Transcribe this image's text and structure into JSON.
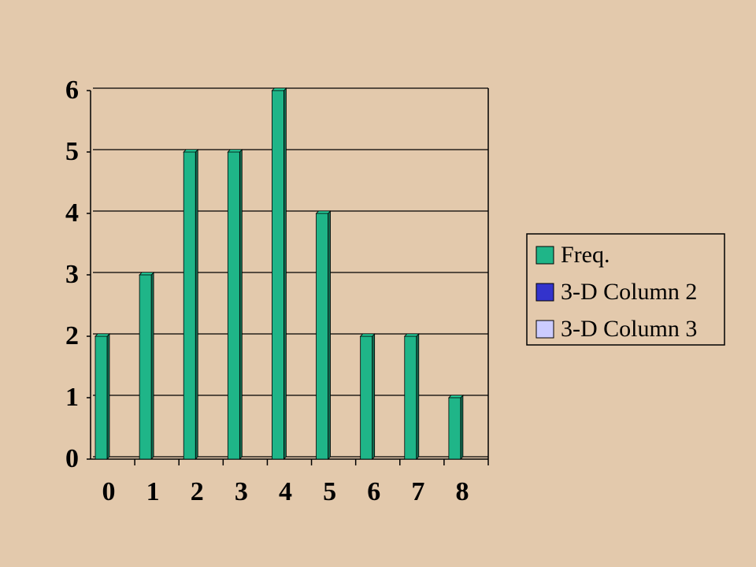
{
  "chart_data": {
    "type": "bar",
    "categories": [
      "0",
      "1",
      "2",
      "3",
      "4",
      "5",
      "6",
      "7",
      "8"
    ],
    "series": [
      {
        "name": "Freq.",
        "color": "#1fb588",
        "values": [
          2,
          3,
          5,
          5,
          6,
          4,
          2,
          2,
          1
        ]
      },
      {
        "name": "3-D Column 2",
        "color": "#3333cc",
        "values": [
          null,
          null,
          null,
          null,
          null,
          null,
          null,
          null,
          null
        ]
      },
      {
        "name": "3-D Column 3",
        "color": "#ccccff",
        "values": [
          null,
          null,
          null,
          null,
          null,
          null,
          null,
          null,
          null
        ]
      }
    ],
    "ylim": [
      0,
      6
    ],
    "yticks": [
      0,
      1,
      2,
      3,
      4,
      5,
      6
    ],
    "grid": true,
    "legend": "right"
  }
}
